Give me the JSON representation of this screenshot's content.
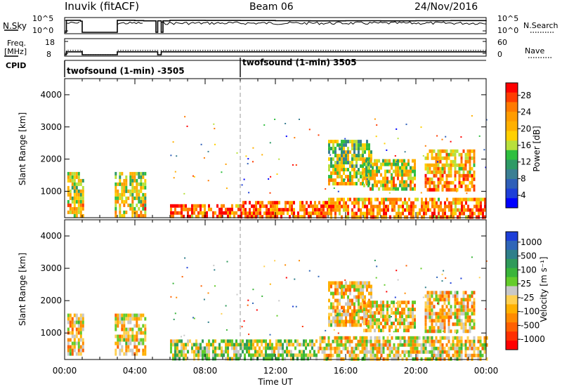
{
  "header": {
    "station": "Inuvik (fitACF)",
    "beam": "Beam 06",
    "date": "24/Nov/2016"
  },
  "nsky_panel": {
    "left_label": "N.Sky",
    "left_ticks": [
      "10^5",
      "10^0"
    ],
    "right_ticks": [
      "10^5",
      "10^0"
    ],
    "right_label": "N.Search",
    "right_legend_style": "dotted"
  },
  "freq_panel": {
    "left_label_line1": "Freq.",
    "left_label_line2": "[MHz]",
    "left_ticks": [
      "18",
      "8"
    ],
    "right_ticks": [
      "60",
      "0"
    ],
    "right_label": "Nave",
    "right_legend_style": "dotted"
  },
  "cpid": {
    "label": "CPID",
    "segments": [
      {
        "text": "twofsound (1-min) -3505",
        "start_hour": 0
      },
      {
        "text": "twofsound (1-min) 3505",
        "start_hour": 10
      }
    ]
  },
  "power_panel": {
    "ylabel": "Slant Range [km]",
    "colorbar_label": "Power [dB]",
    "colorbar_ticks": [
      "28",
      "24",
      "20",
      "16",
      "12",
      "8",
      "4"
    ],
    "colors": [
      "#ff0000",
      "#ff3c00",
      "#ff7a00",
      "#ff9c00",
      "#ffb000",
      "#ffd000",
      "#b8e03c",
      "#2fbf3f",
      "#2e9a66",
      "#3b7f93",
      "#2f5fb8",
      "#1e3fd8",
      "#0000ff"
    ]
  },
  "velocity_panel": {
    "ylabel": "Slant Range [km]",
    "colorbar_label": "Velocity [m s⁻¹]",
    "colorbar_ticks": [
      "1000",
      "500",
      "100",
      "25",
      "-25",
      "-100",
      "-500",
      "-1000"
    ],
    "colors": [
      "#1e3fd8",
      "#2f66b8",
      "#2e7f8a",
      "#2f9a5a",
      "#3ab53a",
      "#64cc2a",
      "#c8c8c8",
      "#ffd050",
      "#ffb000",
      "#ff8a00",
      "#ff6000",
      "#ff3000",
      "#ff0000"
    ]
  },
  "x_axis": {
    "ticks": [
      "00:00",
      "04:00",
      "08:00",
      "12:00",
      "16:00",
      "20:00",
      "00:00"
    ],
    "label": "Time UT"
  },
  "chart_data": [
    {
      "type": "line",
      "name": "N.Sky",
      "x_range_hours": [
        0,
        24
      ],
      "y_scale": "log",
      "ylim": [
        1,
        100000
      ],
      "series": [
        {
          "x": [
            0,
            0.1,
            0.9,
            1.0,
            2.8,
            3.0,
            4.0,
            4.5,
            5.2,
            5.3,
            5.5,
            5.6,
            6.0,
            8,
            10,
            12,
            14,
            16,
            18,
            20,
            22,
            24
          ],
          "values": [
            1,
            30000,
            15000,
            1,
            1,
            30000,
            25000,
            20000,
            1,
            20000,
            1,
            20000,
            30000,
            28000,
            26000,
            22000,
            20000,
            22000,
            20000,
            22000,
            25000,
            28000
          ]
        }
      ]
    },
    {
      "type": "line",
      "name": "Freq.",
      "x_range_hours": [
        0,
        24
      ],
      "ylim": [
        8,
        18
      ],
      "series": [
        {
          "x": [
            0,
            0.1,
            0.9,
            1.0,
            2.8,
            3.0,
            4.0,
            4.6,
            5.3,
            5.5,
            6.0,
            24
          ],
          "values": [
            8,
            10,
            10,
            8,
            8,
            10,
            10,
            10,
            8,
            10,
            10,
            10
          ]
        },
        {
          "x": [
            0,
            0.1,
            0.9,
            1.0,
            2.8,
            3.0,
            4.0,
            4.6,
            5.3,
            5.5,
            6.0,
            24
          ],
          "values": [
            8,
            11,
            11,
            8,
            8,
            11,
            11,
            11,
            8,
            11,
            11,
            11
          ]
        }
      ]
    },
    {
      "type": "heatmap",
      "name": "Power [dB]",
      "x_range_hours": [
        0,
        24
      ],
      "ylim": [
        180,
        4500
      ],
      "clim": [
        0,
        30
      ],
      "regions": [
        {
          "x": [
            0.15,
            1.05
          ],
          "y": [
            200,
            1600
          ],
          "value": 16
        },
        {
          "x": [
            2.85,
            4.6
          ],
          "y": [
            200,
            1600
          ],
          "value": 16
        },
        {
          "x": [
            6.0,
            10.0
          ],
          "y": [
            200,
            600
          ],
          "value": 22
        },
        {
          "x": [
            10.0,
            15.0
          ],
          "y": [
            200,
            700
          ],
          "value": 22
        },
        {
          "x": [
            15.0,
            24.0
          ],
          "y": [
            200,
            800
          ],
          "value": 20
        },
        {
          "x": [
            15.0,
            17.5
          ],
          "y": [
            1200,
            2600
          ],
          "value": 14
        },
        {
          "x": [
            17.0,
            20.0
          ],
          "y": [
            1100,
            2000
          ],
          "value": 16
        },
        {
          "x": [
            20.5,
            23.3
          ],
          "y": [
            1000,
            2300
          ],
          "value": 20
        }
      ]
    },
    {
      "type": "heatmap",
      "name": "Velocity [m s⁻¹]",
      "x_range_hours": [
        0,
        24
      ],
      "ylim": [
        180,
        4500
      ],
      "clim": [
        -1000,
        1000
      ],
      "regions": [
        {
          "x": [
            0.15,
            1.05
          ],
          "y": [
            400,
            1600
          ],
          "value": -200
        },
        {
          "x": [
            2.85,
            4.6
          ],
          "y": [
            400,
            1600
          ],
          "value": -200
        },
        {
          "x": [
            6.0,
            14.5
          ],
          "y": [
            200,
            800
          ],
          "value": 50
        },
        {
          "x": [
            14.5,
            24.0
          ],
          "y": [
            200,
            900
          ],
          "value": -150
        },
        {
          "x": [
            15.0,
            17.5
          ],
          "y": [
            1200,
            2600
          ],
          "value": -200
        },
        {
          "x": [
            17.0,
            20.0
          ],
          "y": [
            1100,
            2000
          ],
          "value": -200
        },
        {
          "x": [
            20.5,
            23.3
          ],
          "y": [
            1000,
            2300
          ],
          "value": -200
        }
      ]
    }
  ]
}
